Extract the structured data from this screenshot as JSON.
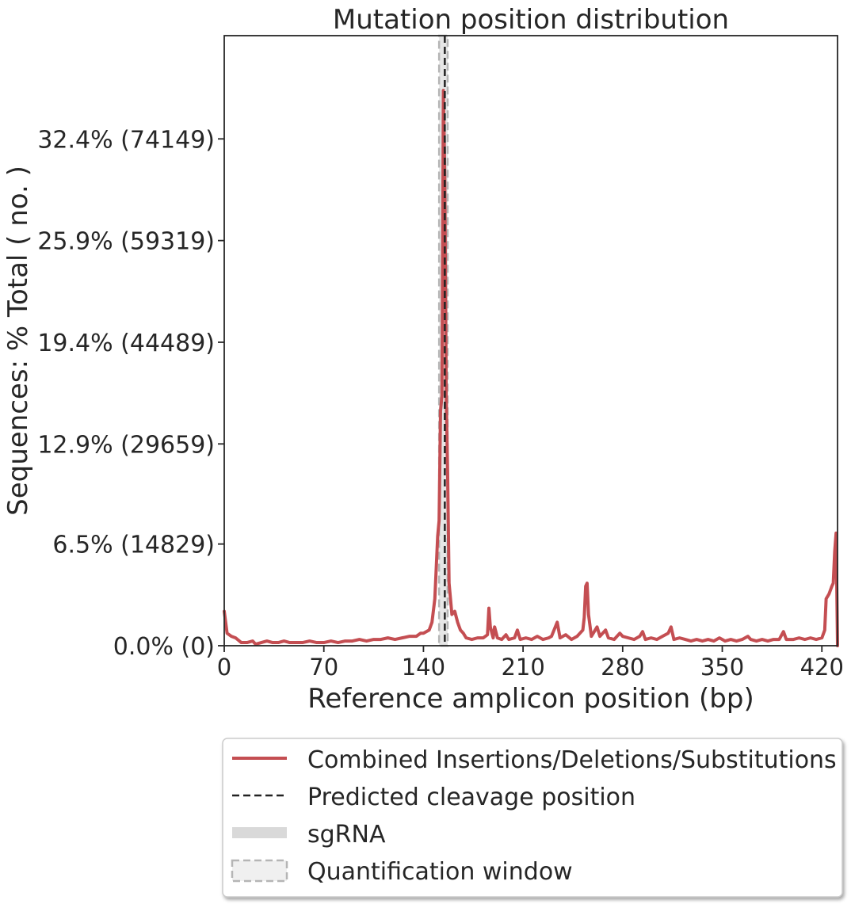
{
  "chart_data": {
    "type": "line",
    "title": "Mutation position distribution",
    "xlabel": "Reference amplicon position (bp)",
    "ylabel": "Sequences: % Total ( no. )",
    "xlim": [
      0,
      431
    ],
    "ylim": [
      0,
      0.39
    ],
    "x_ticks": [
      0,
      70,
      140,
      210,
      280,
      350,
      420
    ],
    "x_tick_labels": [
      "0",
      "70",
      "140",
      "210",
      "280",
      "350",
      "420"
    ],
    "y_ticks": [
      0,
      0.065,
      0.129,
      0.194,
      0.259,
      0.324
    ],
    "y_tick_labels": [
      "0.0% (0)",
      "6.5% (14829)",
      "12.9% (29659)",
      "19.4% (44489)",
      "25.9% (59319)",
      "32.4% (74149)"
    ],
    "grid": false,
    "legend_position": "below plot",
    "colors": {
      "series": "#c44e52",
      "cleavage": "#222222",
      "sgrna": "#d9d9d9",
      "quant_window": "#b5b5b5"
    },
    "cleavage_position": 155,
    "sgrna_range": [
      151,
      157
    ],
    "quantification_window": [
      151,
      157
    ],
    "series": [
      {
        "name": "Combined Insertions/Deletions/Substitutions",
        "points": [
          [
            0,
            0.022
          ],
          [
            2,
            0.008
          ],
          [
            5,
            0.006
          ],
          [
            8,
            0.005
          ],
          [
            12,
            0.002
          ],
          [
            16,
            0.002
          ],
          [
            20,
            0.003
          ],
          [
            22,
            0.001
          ],
          [
            26,
            0.002
          ],
          [
            30,
            0.003
          ],
          [
            34,
            0.002
          ],
          [
            38,
            0.002
          ],
          [
            42,
            0.003
          ],
          [
            46,
            0.002
          ],
          [
            50,
            0.002
          ],
          [
            55,
            0.002
          ],
          [
            60,
            0.003
          ],
          [
            65,
            0.002
          ],
          [
            70,
            0.002
          ],
          [
            75,
            0.003
          ],
          [
            80,
            0.002
          ],
          [
            85,
            0.003
          ],
          [
            90,
            0.003
          ],
          [
            95,
            0.004
          ],
          [
            100,
            0.003
          ],
          [
            105,
            0.004
          ],
          [
            110,
            0.004
          ],
          [
            115,
            0.005
          ],
          [
            120,
            0.004
          ],
          [
            125,
            0.005
          ],
          [
            130,
            0.006
          ],
          [
            135,
            0.006
          ],
          [
            138,
            0.008
          ],
          [
            140,
            0.008
          ],
          [
            142,
            0.009
          ],
          [
            144,
            0.01
          ],
          [
            146,
            0.015
          ],
          [
            148,
            0.03
          ],
          [
            149,
            0.05
          ],
          [
            150,
            0.07
          ],
          [
            151,
            0.08
          ],
          [
            152,
            0.15
          ],
          [
            153,
            0.16
          ],
          [
            154,
            0.355
          ],
          [
            155,
            0.3
          ],
          [
            156,
            0.16
          ],
          [
            157,
            0.11
          ],
          [
            158,
            0.04
          ],
          [
            159,
            0.03
          ],
          [
            160,
            0.02
          ],
          [
            162,
            0.022
          ],
          [
            164,
            0.015
          ],
          [
            166,
            0.01
          ],
          [
            168,
            0.008
          ],
          [
            170,
            0.005
          ],
          [
            174,
            0.004
          ],
          [
            178,
            0.005
          ],
          [
            182,
            0.005
          ],
          [
            185,
            0.007
          ],
          [
            186,
            0.024
          ],
          [
            187,
            0.012
          ],
          [
            189,
            0.005
          ],
          [
            190,
            0.012
          ],
          [
            192,
            0.005
          ],
          [
            195,
            0.004
          ],
          [
            198,
            0.007
          ],
          [
            200,
            0.004
          ],
          [
            204,
            0.005
          ],
          [
            206,
            0.01
          ],
          [
            208,
            0.004
          ],
          [
            212,
            0.005
          ],
          [
            216,
            0.004
          ],
          [
            220,
            0.006
          ],
          [
            224,
            0.004
          ],
          [
            228,
            0.005
          ],
          [
            230,
            0.006
          ],
          [
            234,
            0.015
          ],
          [
            236,
            0.005
          ],
          [
            240,
            0.007
          ],
          [
            244,
            0.004
          ],
          [
            248,
            0.006
          ],
          [
            250,
            0.008
          ],
          [
            252,
            0.01
          ],
          [
            253,
            0.018
          ],
          [
            254,
            0.038
          ],
          [
            255,
            0.04
          ],
          [
            256,
            0.02
          ],
          [
            258,
            0.006
          ],
          [
            262,
            0.012
          ],
          [
            264,
            0.006
          ],
          [
            268,
            0.01
          ],
          [
            270,
            0.005
          ],
          [
            274,
            0.004
          ],
          [
            278,
            0.008
          ],
          [
            280,
            0.006
          ],
          [
            284,
            0.005
          ],
          [
            288,
            0.004
          ],
          [
            292,
            0.006
          ],
          [
            294,
            0.009
          ],
          [
            296,
            0.004
          ],
          [
            300,
            0.005
          ],
          [
            304,
            0.004
          ],
          [
            308,
            0.006
          ],
          [
            312,
            0.008
          ],
          [
            314,
            0.012
          ],
          [
            316,
            0.004
          ],
          [
            320,
            0.005
          ],
          [
            324,
            0.004
          ],
          [
            328,
            0.003
          ],
          [
            332,
            0.004
          ],
          [
            336,
            0.003
          ],
          [
            340,
            0.004
          ],
          [
            344,
            0.003
          ],
          [
            348,
            0.005
          ],
          [
            352,
            0.003
          ],
          [
            356,
            0.004
          ],
          [
            360,
            0.003
          ],
          [
            364,
            0.004
          ],
          [
            368,
            0.006
          ],
          [
            370,
            0.004
          ],
          [
            374,
            0.003
          ],
          [
            378,
            0.004
          ],
          [
            382,
            0.003
          ],
          [
            386,
            0.004
          ],
          [
            390,
            0.004
          ],
          [
            393,
            0.009
          ],
          [
            395,
            0.004
          ],
          [
            400,
            0.004
          ],
          [
            404,
            0.005
          ],
          [
            408,
            0.004
          ],
          [
            412,
            0.005
          ],
          [
            416,
            0.004
          ],
          [
            420,
            0.005
          ],
          [
            422,
            0.01
          ],
          [
            423,
            0.03
          ],
          [
            425,
            0.033
          ],
          [
            427,
            0.038
          ],
          [
            428,
            0.04
          ],
          [
            429,
            0.06
          ],
          [
            430,
            0.072
          ],
          [
            431,
            0.0
          ]
        ]
      }
    ],
    "legend": [
      {
        "label": "Combined Insertions/Deletions/Substitutions",
        "kind": "line"
      },
      {
        "label": "Predicted cleavage position",
        "kind": "dashed"
      },
      {
        "label": "sgRNA",
        "kind": "band"
      },
      {
        "label": "Quantification window",
        "kind": "box"
      }
    ]
  }
}
